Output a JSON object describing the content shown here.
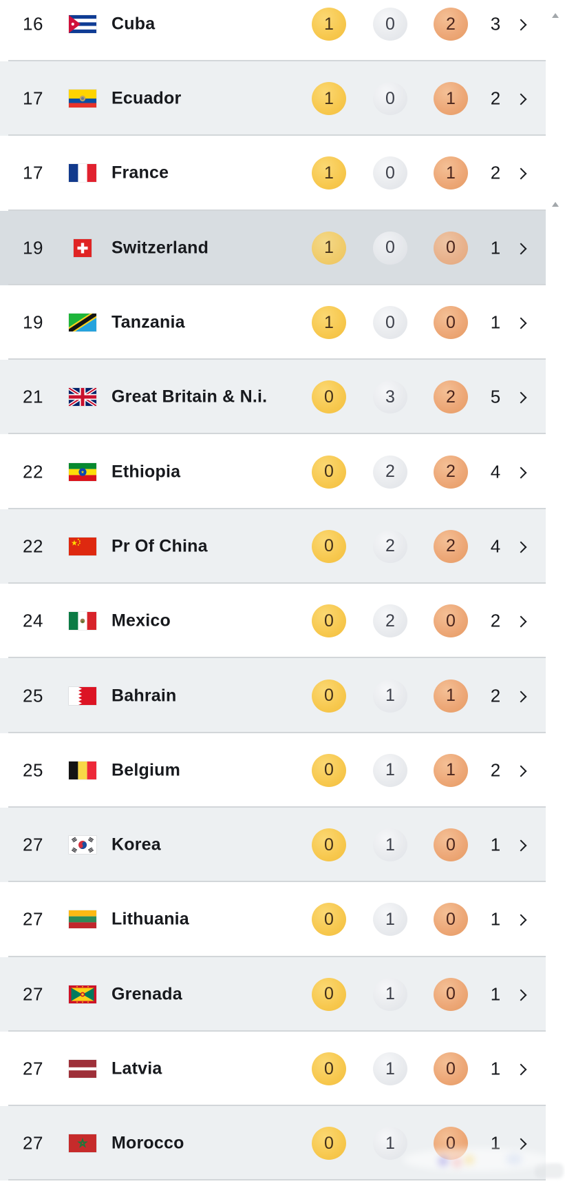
{
  "colors": {
    "row_zebra": "#edf0f2",
    "row_highlight": "#d8dde1",
    "divider": "#d2d6d9",
    "gold": "#f7c84e",
    "silver": "#e9ebee",
    "bronze": "#eda878",
    "text": "#17191d",
    "scroll_arrow": "#a2a7ab"
  },
  "icons": {
    "row_chevron": "chevron-right",
    "scrollbar_arrow": "triangle-up"
  },
  "table": {
    "rows": [
      {
        "rank": "16",
        "country": "Cuba",
        "flag": "cuba",
        "gold": "1",
        "silver": "0",
        "bronze": "2",
        "total": "3",
        "highlighted": false
      },
      {
        "rank": "17",
        "country": "Ecuador",
        "flag": "ecuador",
        "gold": "1",
        "silver": "0",
        "bronze": "1",
        "total": "2",
        "highlighted": false
      },
      {
        "rank": "17",
        "country": "France",
        "flag": "france",
        "gold": "1",
        "silver": "0",
        "bronze": "1",
        "total": "2",
        "highlighted": false
      },
      {
        "rank": "19",
        "country": "Switzerland",
        "flag": "switzerland",
        "gold": "1",
        "silver": "0",
        "bronze": "0",
        "total": "1",
        "highlighted": true
      },
      {
        "rank": "19",
        "country": "Tanzania",
        "flag": "tanzania",
        "gold": "1",
        "silver": "0",
        "bronze": "0",
        "total": "1",
        "highlighted": false
      },
      {
        "rank": "21",
        "country": "Great Britain & N.i.",
        "flag": "great-britain",
        "gold": "0",
        "silver": "3",
        "bronze": "2",
        "total": "5",
        "highlighted": false
      },
      {
        "rank": "22",
        "country": "Ethiopia",
        "flag": "ethiopia",
        "gold": "0",
        "silver": "2",
        "bronze": "2",
        "total": "4",
        "highlighted": false
      },
      {
        "rank": "22",
        "country": "Pr Of China",
        "flag": "china",
        "gold": "0",
        "silver": "2",
        "bronze": "2",
        "total": "4",
        "highlighted": false
      },
      {
        "rank": "24",
        "country": "Mexico",
        "flag": "mexico",
        "gold": "0",
        "silver": "2",
        "bronze": "0",
        "total": "2",
        "highlighted": false
      },
      {
        "rank": "25",
        "country": "Bahrain",
        "flag": "bahrain",
        "gold": "0",
        "silver": "1",
        "bronze": "1",
        "total": "2",
        "highlighted": false
      },
      {
        "rank": "25",
        "country": "Belgium",
        "flag": "belgium",
        "gold": "0",
        "silver": "1",
        "bronze": "1",
        "total": "2",
        "highlighted": false
      },
      {
        "rank": "27",
        "country": "Korea",
        "flag": "korea",
        "gold": "0",
        "silver": "1",
        "bronze": "0",
        "total": "1",
        "highlighted": false
      },
      {
        "rank": "27",
        "country": "Lithuania",
        "flag": "lithuania",
        "gold": "0",
        "silver": "1",
        "bronze": "0",
        "total": "1",
        "highlighted": false
      },
      {
        "rank": "27",
        "country": "Grenada",
        "flag": "grenada",
        "gold": "0",
        "silver": "1",
        "bronze": "0",
        "total": "1",
        "highlighted": false
      },
      {
        "rank": "27",
        "country": "Latvia",
        "flag": "latvia",
        "gold": "0",
        "silver": "1",
        "bronze": "0",
        "total": "1",
        "highlighted": false
      },
      {
        "rank": "27",
        "country": "Morocco",
        "flag": "morocco",
        "gold": "0",
        "silver": "1",
        "bronze": "0",
        "total": "1",
        "highlighted": false
      }
    ]
  }
}
